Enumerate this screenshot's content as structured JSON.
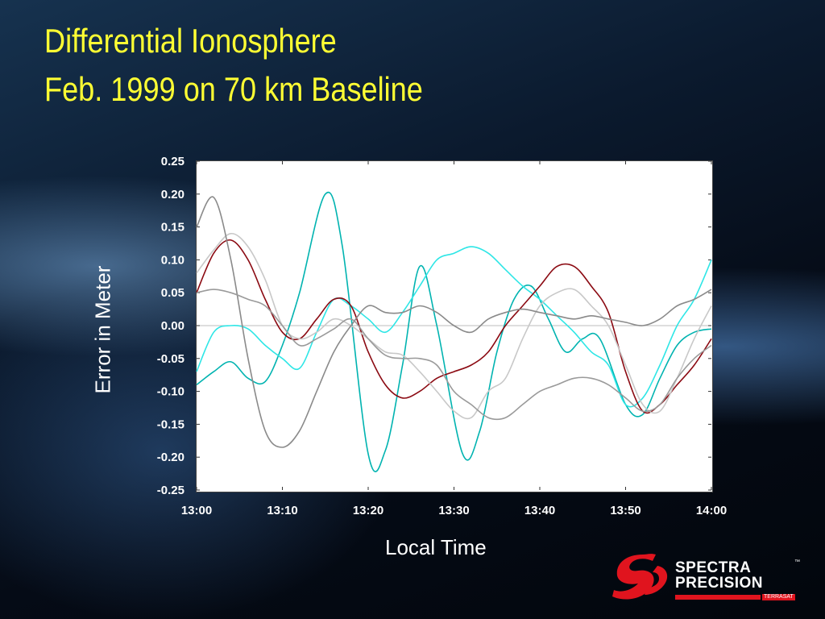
{
  "slide": {
    "title_line1": "Differential Ionosphere",
    "title_line2": "Feb. 1999 on 70 km Baseline"
  },
  "logo": {
    "line1": "SPECTRA",
    "line2": "PRECISION",
    "trademark": "™",
    "sub": "TERRASAT"
  },
  "chart_data": {
    "type": "line",
    "xlabel": "Local Time",
    "ylabel": "Error in Meter",
    "ylim": [
      -0.25,
      0.25
    ],
    "xlim_minutes_after_13_00": [
      0,
      60
    ],
    "x_ticks": [
      "13:00",
      "13:10",
      "13:20",
      "13:30",
      "13:40",
      "13:50",
      "14:00"
    ],
    "y_ticks": [
      "0.25",
      "0.20",
      "0.15",
      "0.10",
      "0.05",
      "0.00",
      "-0.05",
      "-0.10",
      "-0.15",
      "-0.20",
      "-0.25"
    ],
    "grid": false,
    "zero_line": true,
    "series": [
      {
        "color": "#00b3b0",
        "x": [
          "13:00",
          "13:02",
          "13:04",
          "13:06",
          "13:08",
          "13:10",
          "13:12",
          "13:15",
          "13:17",
          "13:20",
          "13:22",
          "13:24",
          "13:26",
          "13:28",
          "13:31",
          "13:33",
          "13:35",
          "13:37",
          "13:39",
          "13:41",
          "13:43",
          "13:45",
          "13:47",
          "13:50",
          "13:52",
          "13:54",
          "13:56",
          "13:58",
          "14:00"
        ],
        "y": [
          -0.09,
          -0.07,
          -0.055,
          -0.08,
          -0.085,
          -0.03,
          0.05,
          0.2,
          0.12,
          -0.195,
          -0.19,
          -0.06,
          0.09,
          0.0,
          -0.195,
          -0.16,
          -0.04,
          0.04,
          0.06,
          0.01,
          -0.04,
          -0.02,
          -0.02,
          -0.12,
          -0.135,
          -0.08,
          -0.03,
          -0.01,
          -0.005
        ]
      },
      {
        "color": "#2ee6e6",
        "x": [
          "13:00",
          "13:02",
          "13:04",
          "13:06",
          "13:08",
          "13:10",
          "13:12",
          "13:14",
          "13:16",
          "13:18",
          "13:20",
          "13:22",
          "13:24",
          "13:26",
          "13:28",
          "13:30",
          "13:32",
          "13:34",
          "13:36",
          "13:38",
          "13:40",
          "13:42",
          "13:44",
          "13:46",
          "13:48",
          "13:50",
          "13:52",
          "13:54",
          "13:56",
          "13:58",
          "14:00"
        ],
        "y": [
          -0.07,
          -0.01,
          0.0,
          -0.005,
          -0.03,
          -0.05,
          -0.065,
          -0.01,
          0.04,
          0.03,
          0.01,
          -0.01,
          0.02,
          0.06,
          0.1,
          0.11,
          0.12,
          0.11,
          0.085,
          0.06,
          0.04,
          0.015,
          -0.01,
          -0.04,
          -0.06,
          -0.12,
          -0.11,
          -0.06,
          0.0,
          0.04,
          0.1
        ]
      },
      {
        "color": "#8b0a12",
        "x": [
          "13:00",
          "13:02",
          "13:04",
          "13:06",
          "13:08",
          "13:10",
          "13:12",
          "13:14",
          "13:16",
          "13:18",
          "13:20",
          "13:22",
          "13:24",
          "13:26",
          "13:28",
          "13:30",
          "13:32",
          "13:34",
          "13:36",
          "13:38",
          "13:40",
          "13:42",
          "13:44",
          "13:46",
          "13:48",
          "13:50",
          "13:52",
          "13:54",
          "13:56",
          "13:58",
          "14:00"
        ],
        "y": [
          0.05,
          0.11,
          0.13,
          0.1,
          0.04,
          -0.01,
          -0.02,
          0.01,
          0.04,
          0.03,
          -0.04,
          -0.09,
          -0.11,
          -0.1,
          -0.08,
          -0.07,
          -0.06,
          -0.04,
          0.0,
          0.03,
          0.06,
          0.09,
          0.09,
          0.06,
          0.02,
          -0.07,
          -0.13,
          -0.12,
          -0.09,
          -0.06,
          -0.02
        ]
      },
      {
        "color": "#c8c8c8",
        "x": [
          "13:00",
          "13:02",
          "13:04",
          "13:06",
          "13:08",
          "13:10",
          "13:12",
          "13:14",
          "13:16",
          "13:18",
          "13:20",
          "13:22",
          "13:24",
          "13:26",
          "13:28",
          "13:30",
          "13:32",
          "13:34",
          "13:36",
          "13:38",
          "13:40",
          "13:42",
          "13:44",
          "13:46",
          "13:48",
          "13:50",
          "13:52",
          "13:54",
          "13:56",
          "13:58",
          "14:00"
        ],
        "y": [
          0.08,
          0.115,
          0.14,
          0.12,
          0.07,
          0.0,
          -0.02,
          -0.01,
          0.01,
          0.0,
          -0.02,
          -0.04,
          -0.045,
          -0.07,
          -0.1,
          -0.13,
          -0.14,
          -0.1,
          -0.08,
          -0.02,
          0.03,
          0.05,
          0.055,
          0.03,
          0.0,
          -0.06,
          -0.12,
          -0.13,
          -0.08,
          -0.02,
          0.03
        ]
      },
      {
        "color": "#8a8a8a",
        "x": [
          "13:00",
          "13:02",
          "13:04",
          "13:06",
          "13:08",
          "13:10",
          "13:12",
          "13:14",
          "13:16",
          "13:18",
          "13:20",
          "13:22",
          "13:24",
          "13:26",
          "13:28",
          "13:30",
          "13:32",
          "13:34",
          "13:36",
          "13:38",
          "13:40",
          "13:42",
          "13:44",
          "13:46",
          "13:48",
          "13:50",
          "13:52",
          "13:54",
          "13:56",
          "13:58",
          "14:00"
        ],
        "y": [
          0.15,
          0.195,
          0.1,
          -0.05,
          -0.16,
          -0.185,
          -0.16,
          -0.1,
          -0.04,
          0.0,
          0.03,
          0.02,
          0.02,
          0.03,
          0.02,
          0.0,
          -0.01,
          0.01,
          0.02,
          0.025,
          0.02,
          0.015,
          0.01,
          0.015,
          0.01,
          0.005,
          0.0,
          0.01,
          0.03,
          0.04,
          0.055
        ]
      },
      {
        "color": "#9a9a9a",
        "x": [
          "13:00",
          "13:02",
          "13:04",
          "13:06",
          "13:08",
          "13:10",
          "13:12",
          "13:14",
          "13:16",
          "13:18",
          "13:20",
          "13:22",
          "13:24",
          "13:26",
          "13:28",
          "13:30",
          "13:32",
          "13:34",
          "13:36",
          "13:38",
          "13:40",
          "13:42",
          "13:44",
          "13:46",
          "13:48",
          "13:50",
          "13:52",
          "13:54",
          "13:56",
          "13:58",
          "14:00"
        ],
        "y": [
          0.05,
          0.055,
          0.05,
          0.04,
          0.03,
          0.0,
          -0.03,
          -0.02,
          -0.005,
          0.01,
          -0.02,
          -0.045,
          -0.05,
          -0.05,
          -0.06,
          -0.1,
          -0.12,
          -0.14,
          -0.14,
          -0.12,
          -0.1,
          -0.09,
          -0.08,
          -0.08,
          -0.09,
          -0.11,
          -0.13,
          -0.12,
          -0.08,
          -0.05,
          -0.03
        ]
      }
    ]
  }
}
